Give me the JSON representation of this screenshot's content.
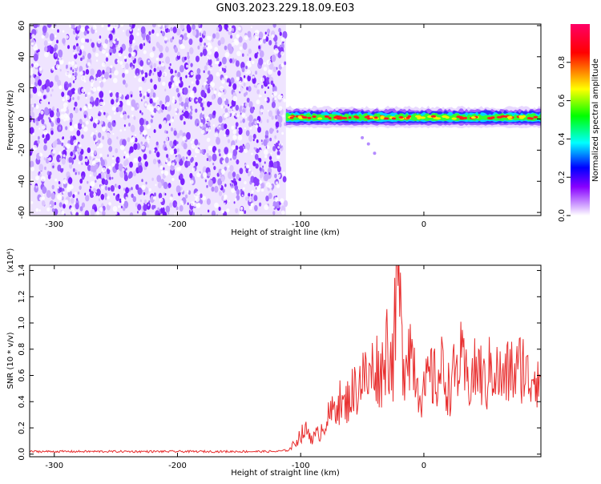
{
  "title": "GN03.2023.229.18.09.E03",
  "chart_data": [
    {
      "type": "heatmap",
      "xlabel": "Height of straight line (km)",
      "ylabel": "Frequency (Hz)",
      "xlim": [
        -320,
        95
      ],
      "ylim": [
        -62,
        61
      ],
      "xticks": [
        -300,
        -200,
        -100,
        0
      ],
      "xtick_labels": [
        "-300",
        "-200",
        "-100",
        "0"
      ],
      "yticks": [
        60,
        40,
        20,
        0,
        -20,
        -40,
        -60
      ],
      "ytick_labels": [
        "60",
        "40",
        "20",
        "0",
        "-20",
        "-40",
        "-60"
      ],
      "noise_region_x": [
        -320,
        -112
      ],
      "signal_band": {
        "x_start": -112,
        "x_end": 95,
        "center_hz": 1,
        "half_width_hz": 5
      },
      "colorbar": {
        "label": "Normalized spectral amplitude",
        "range": [
          0,
          1
        ],
        "ticks": [
          0.0,
          0.2,
          0.4,
          0.6,
          0.8
        ],
        "tick_labels": [
          "0.0",
          "0.2",
          "0.4",
          "0.6",
          "0.8"
        ],
        "colors": [
          "#ffffff",
          "#cc99ff",
          "#8800ff",
          "#0000ff",
          "#00ffff",
          "#00ff00",
          "#ffff00",
          "#ff0000",
          "#ff0066"
        ]
      }
    },
    {
      "type": "line",
      "xlabel": "Height of straight line (km)",
      "ylabel": "SNR (10 * v/v)",
      "y_multiplier_label": "(x10⁴)",
      "xlim": [
        -320,
        95
      ],
      "ylim": [
        -0.02,
        1.44
      ],
      "xticks": [
        -300,
        -200,
        -100,
        0
      ],
      "xtick_labels": [
        "-300",
        "-200",
        "-100",
        "0"
      ],
      "yticks": [
        0.0,
        0.2,
        0.4,
        0.6,
        0.8,
        1.0,
        1.2,
        1.4
      ],
      "ytick_labels": [
        "0.0",
        "0.2",
        "0.4",
        "0.6",
        "0.8",
        "1.0",
        "1.2",
        "1.4"
      ],
      "series": [
        {
          "color": "#e83030",
          "x": [
            -320,
            -300,
            -280,
            -260,
            -240,
            -220,
            -200,
            -180,
            -160,
            -140,
            -120,
            -110,
            -105,
            -100,
            -95,
            -90,
            -85,
            -80,
            -75,
            -70,
            -65,
            -60,
            -55,
            -50,
            -45,
            -40,
            -35,
            -30,
            -25,
            -21,
            -17,
            -13,
            -9,
            -5,
            0,
            5,
            10,
            15,
            20,
            25,
            30,
            35,
            40,
            45,
            50,
            55,
            60,
            65,
            70,
            75,
            80,
            85,
            90,
            95
          ],
          "y": [
            0.02,
            0.02,
            0.02,
            0.02,
            0.02,
            0.02,
            0.02,
            0.02,
            0.02,
            0.02,
            0.02,
            0.03,
            0.08,
            0.15,
            0.18,
            0.12,
            0.16,
            0.25,
            0.3,
            0.42,
            0.35,
            0.45,
            0.5,
            0.6,
            0.55,
            0.7,
            0.6,
            0.85,
            0.7,
            1.4,
            0.65,
            0.9,
            0.75,
            0.55,
            0.45,
            0.6,
            0.55,
            0.65,
            0.5,
            0.6,
            0.7,
            0.55,
            0.6,
            0.65,
            0.5,
            0.7,
            0.6,
            0.55,
            0.65,
            0.6,
            0.7,
            0.55,
            0.65,
            0.6
          ]
        }
      ]
    }
  ]
}
